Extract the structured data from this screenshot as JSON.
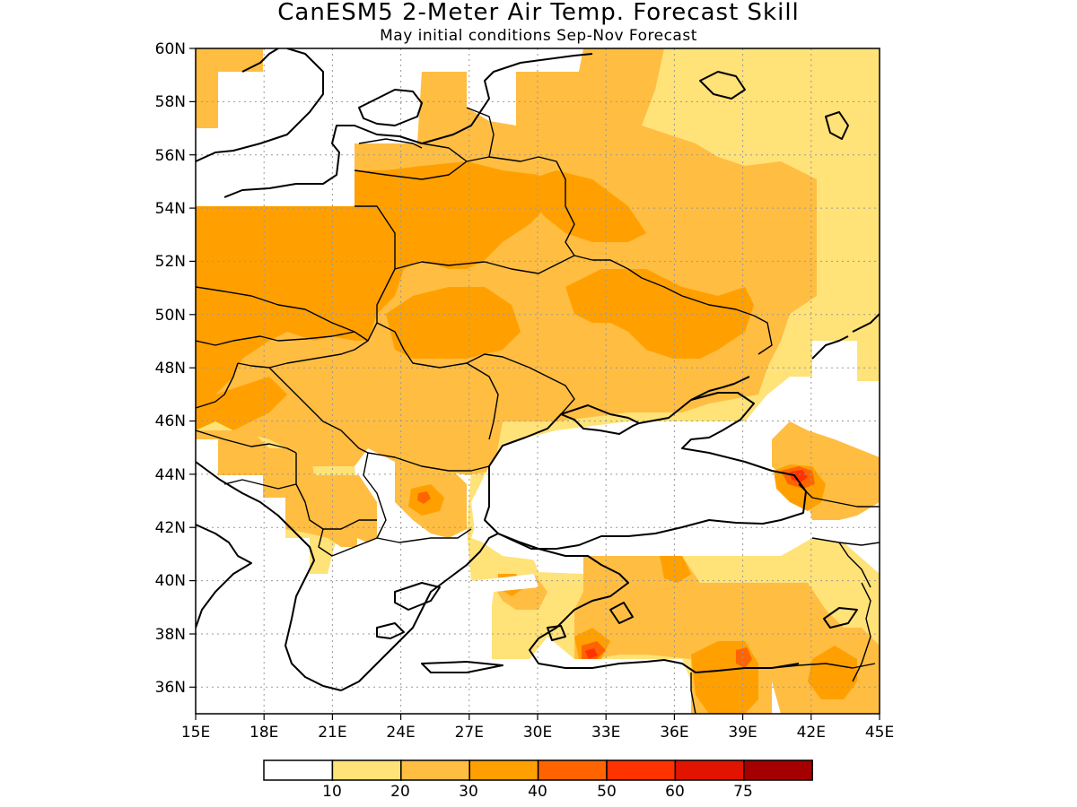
{
  "header": {
    "title": "CanESM5 2-Meter Air Temp. Forecast Skill",
    "subtitle": "May initial conditions  Sep-Nov Forecast"
  },
  "map": {
    "lon_range": [
      15,
      45
    ],
    "lat_range": [
      35,
      60
    ],
    "lon_ticks": [
      "15E",
      "18E",
      "21E",
      "24E",
      "27E",
      "30E",
      "33E",
      "36E",
      "39E",
      "42E",
      "45E"
    ],
    "lat_ticks": [
      "36N",
      "38N",
      "40N",
      "42N",
      "44N",
      "46N",
      "48N",
      "50N",
      "52N",
      "54N",
      "56N",
      "58N",
      "60N"
    ],
    "grid": true
  },
  "colorbar": {
    "labels": [
      "10",
      "20",
      "30",
      "40",
      "50",
      "60",
      "75"
    ],
    "colors": [
      "#ffffff",
      "#ffe278",
      "#ffbd42",
      "#ffa000",
      "#ff6400",
      "#ff3200",
      "#e11400",
      "#a50000"
    ]
  }
}
